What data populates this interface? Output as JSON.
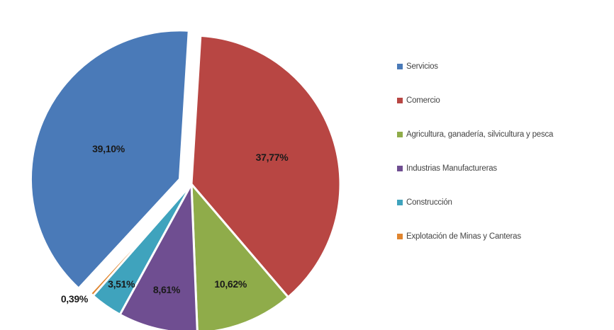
{
  "chart_data": {
    "type": "pie",
    "title": "",
    "slices": [
      {
        "name": "Servicios",
        "value": 39.1,
        "label": "39,10%",
        "color": "#4a7ab8"
      },
      {
        "name": "Comercio",
        "value": 37.77,
        "label": "37,77%",
        "color": "#b84643"
      },
      {
        "name": "Agricultura, ganadería, silvicultura y pesca",
        "value": 10.62,
        "label": "10,62%",
        "color": "#8fac4a"
      },
      {
        "name": "Industrias Manufactureras",
        "value": 8.61,
        "label": "8,61%",
        "color": "#6f4e91"
      },
      {
        "name": "Construcción",
        "value": 3.51,
        "label": "3,51%",
        "color": "#3fa3bd"
      },
      {
        "name": "Explotación de Minas y Canteras",
        "value": 0.39,
        "label": "0,39%",
        "color": "#e0852f"
      }
    ],
    "exploded_slices": [
      "Servicios"
    ],
    "legend_position": "right"
  }
}
